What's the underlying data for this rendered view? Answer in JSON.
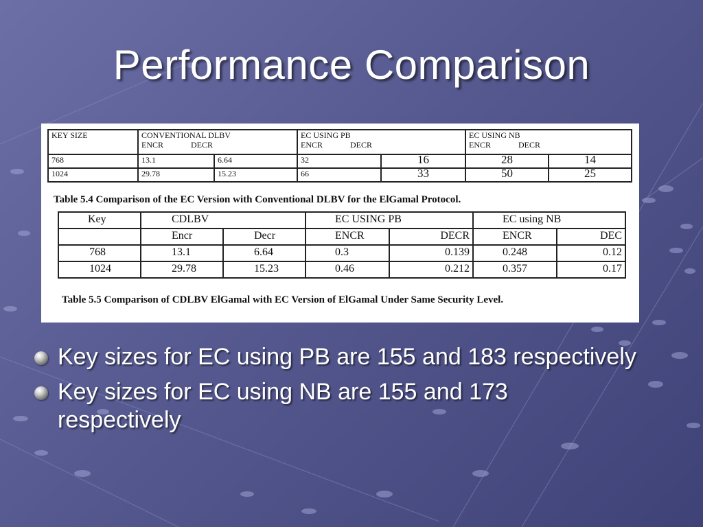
{
  "slide": {
    "title": "Performance Comparison"
  },
  "table_5_4": {
    "headers": {
      "key_size": "KEY SIZE",
      "conventional": "CONVENTIONAL DLBV",
      "ec_pb": "EC USING PB",
      "ec_nb": "EC USING NB",
      "encr": "ENCR",
      "decr": "DECR"
    },
    "rows": [
      [
        "768",
        "13.1",
        "6.64",
        "32",
        "16",
        "28",
        "14"
      ],
      [
        "1024",
        "29.78",
        "15.23",
        "66",
        "33",
        "50",
        "25"
      ]
    ],
    "caption": "Table 5.4  Comparison of the EC Version with Conventional DLBV for the ElGamal Protocol."
  },
  "table_5_5": {
    "header_row1": [
      "Key",
      "CDLBV",
      "EC USING PB",
      "EC using NB"
    ],
    "header_row2": [
      "",
      "Encr",
      "Decr",
      "ENCR",
      "DECR",
      "ENCR",
      "DEC"
    ],
    "rows": [
      [
        "768",
        "13.1",
        "6.64",
        "0.3",
        "0.139",
        "0.248",
        "0.12"
      ],
      [
        "1024",
        "29.78",
        "15.23",
        "0.46",
        "0.212",
        "0.357",
        "0.17"
      ]
    ],
    "caption": "Table 5.5  Comparison of CDLBV ElGamal with EC Version of ElGamal Under Same Security Level."
  },
  "bullets": [
    "Key sizes for EC using PB are 155 and 183 respectively",
    "Key sizes for EC using NB are 155 and 173 respectively"
  ]
}
